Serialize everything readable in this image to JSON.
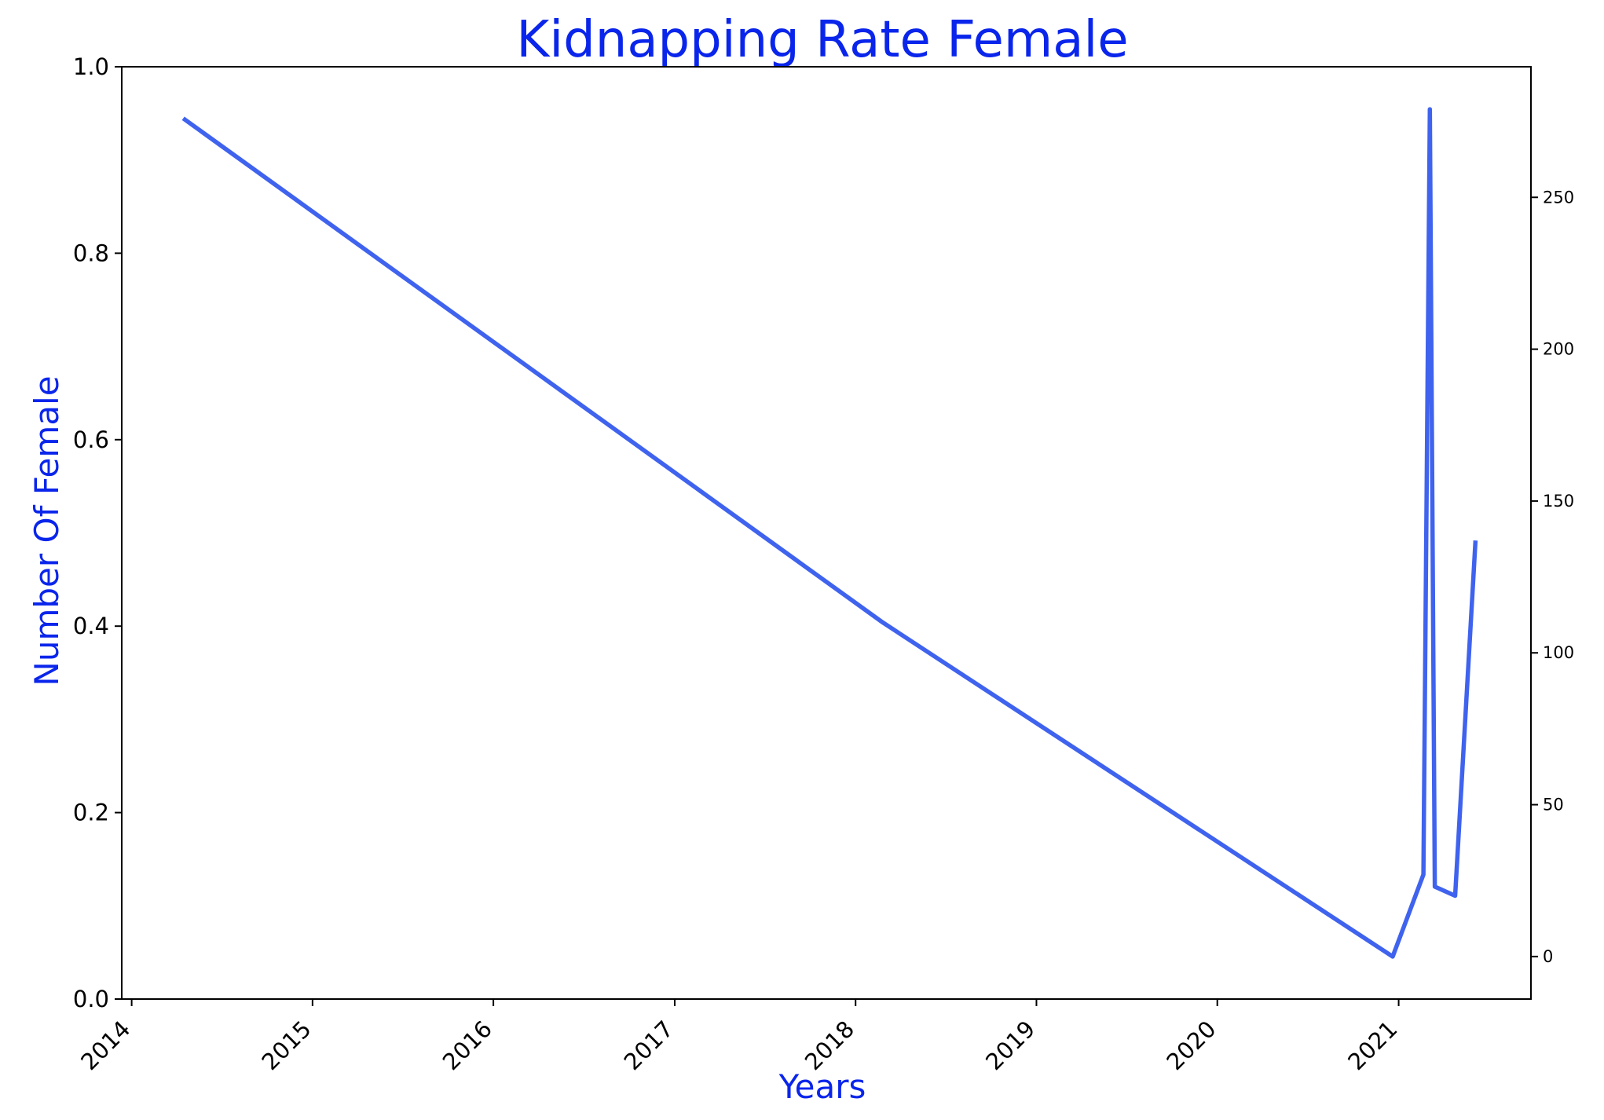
{
  "colors": {
    "text_accent": "#0a25eb",
    "line": "#3f63ee",
    "axis": "#000000"
  },
  "chart_data": {
    "type": "line",
    "title": "Kidnapping Rate Female",
    "xlabel": "Years",
    "ylabel": "Number Of Female",
    "x_ticks": [
      "2014",
      "2015",
      "2016",
      "2017",
      "2018",
      "2019",
      "2020",
      "2021"
    ],
    "xlim": [
      "2013-12-12",
      "2021-09-25"
    ],
    "y_left": {
      "lim": [
        0,
        1
      ],
      "ticks": [
        "0.0",
        "0.2",
        "0.4",
        "0.6",
        "0.8",
        "1.0"
      ]
    },
    "y_right": {
      "lim": [
        -14,
        293
      ],
      "ticks": [
        "0",
        "50",
        "100",
        "150",
        "200",
        "250"
      ]
    },
    "grid": false,
    "legend": "none",
    "series": [
      {
        "axis": "right",
        "x": [
          "2014-04-15",
          "2018-02-25",
          "2020-12-20",
          "2021-02-20",
          "2021-03-05",
          "2021-03-15",
          "2021-04-25",
          "2021-06-05"
        ],
        "y": [
          276,
          110,
          0,
          27,
          279,
          23,
          20,
          137
        ]
      }
    ]
  }
}
